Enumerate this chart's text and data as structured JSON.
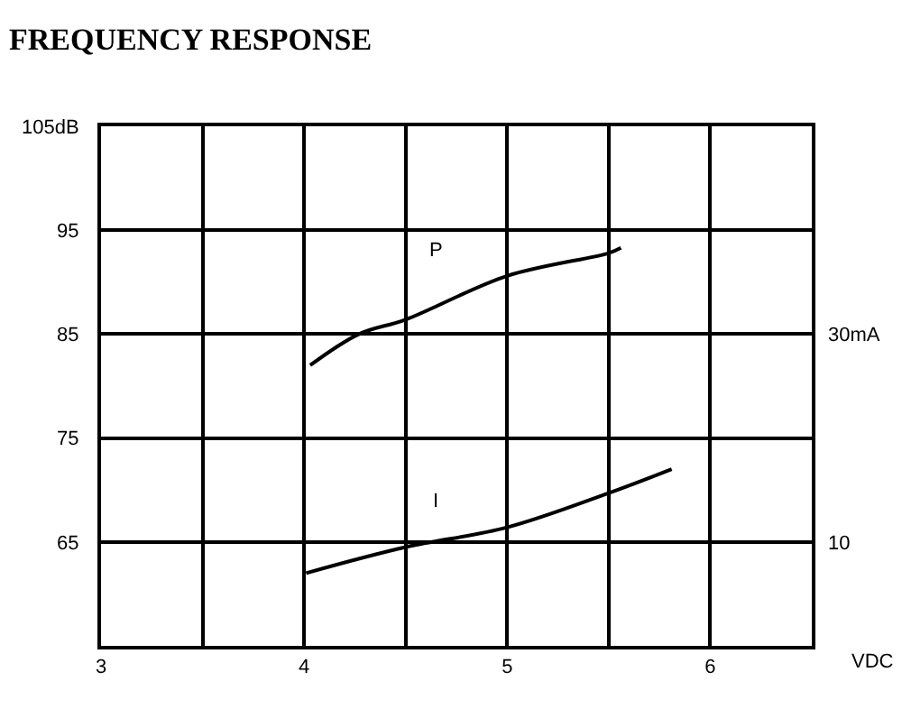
{
  "chart_data": {
    "type": "line",
    "title": "FREQUENCY RESPONSE",
    "xlabel": "VDC",
    "xlim": [
      3,
      6.5
    ],
    "xticks": [
      3,
      {
        "value": 3.5,
        "label": null
      },
      4,
      {
        "value": 4.5,
        "label": null
      },
      5,
      {
        "value": 5.5,
        "label": null
      },
      6,
      {
        "value": 6.5,
        "label": null
      }
    ],
    "ylim": [
      55,
      105
    ],
    "yticks": [
      {
        "value": 55,
        "label": null
      },
      65,
      75,
      85,
      95,
      {
        "value": 105,
        "label": "105dB"
      }
    ],
    "y2lim": [
      0,
      50
    ],
    "y2ticks": [
      10,
      {
        "value": 30,
        "label": "30mA"
      }
    ],
    "grid": true,
    "legend": false,
    "marker": "none",
    "line_style": "solid",
    "series": [
      {
        "name": "P",
        "color": "#000000",
        "x": [
          4.03,
          4.27,
          4.5,
          5,
          5.5,
          5.56
        ],
        "values": [
          82.0,
          85.0,
          86.4,
          90.6,
          92.8,
          93.3
        ]
      },
      {
        "name": "I",
        "color": "#000000",
        "axis": "y2",
        "x": [
          4.01,
          4.5,
          5,
          5.5,
          5.81
        ],
        "values": [
          7.0,
          9.5,
          11.4,
          14.7,
          17.0
        ]
      }
    ]
  }
}
